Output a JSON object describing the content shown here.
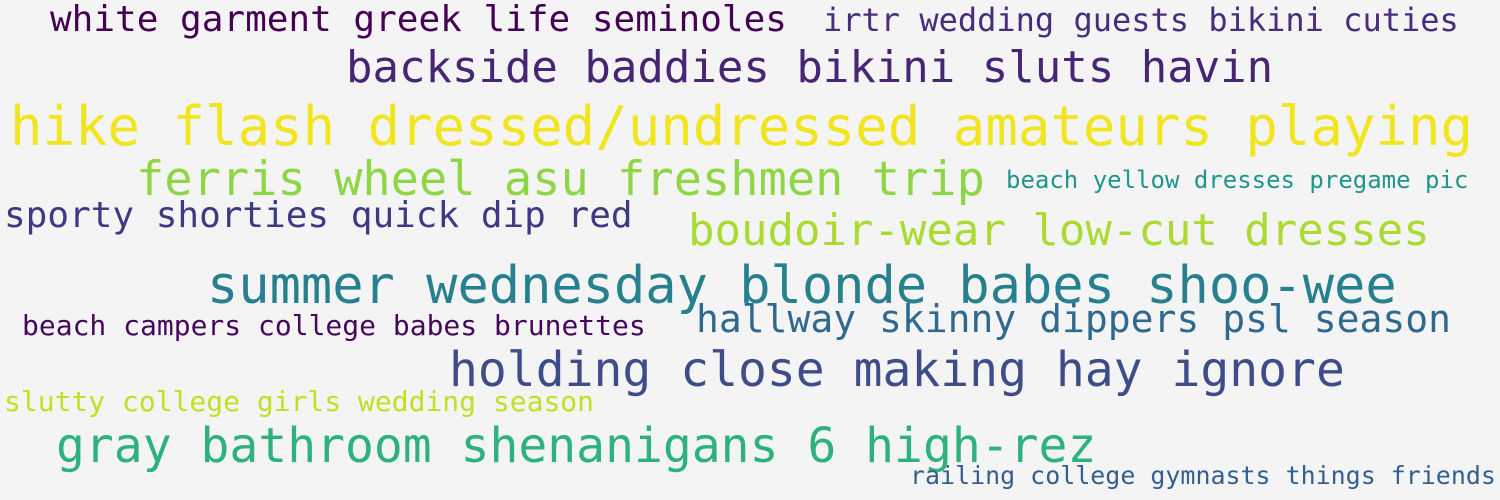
{
  "cloud": {
    "background": "#f4f4f4",
    "phrases": [
      {
        "text": "white garment greek life seminoles",
        "color": "#440154"
      },
      {
        "text": "irtr wedding guests bikini cuties",
        "color": "#472d7b"
      },
      {
        "text": "backside baddies bikini sluts havin",
        "color": "#482475"
      },
      {
        "text": "hike flash dressed/undressed amateurs playing",
        "color": "#f0e51f"
      },
      {
        "text": "ferris wheel asu freshmen trip",
        "color": "#8ed645"
      },
      {
        "text": "beach yellow dresses pregame pic",
        "color": "#1f958b"
      },
      {
        "text": "sporty shorties quick dip red",
        "color": "#3b3a83"
      },
      {
        "text": "boudoir-wear low-cut dresses",
        "color": "#a9db33"
      },
      {
        "text": "summer wednesday blonde babes shoo-wee",
        "color": "#27808e"
      },
      {
        "text": "beach campers college babes brunettes",
        "color": "#46085c"
      },
      {
        "text": "hallway skinny dippers psl season",
        "color": "#30698e"
      },
      {
        "text": "holding close making hay ignore",
        "color": "#3f4c8a"
      },
      {
        "text": "slutty college girls wedding season",
        "color": "#c2df23"
      },
      {
        "text": "gray bathroom shenanigans 6 high-rez",
        "color": "#2db27d"
      },
      {
        "text": "railing college gymnasts things friends",
        "color": "#355f8d"
      }
    ]
  }
}
